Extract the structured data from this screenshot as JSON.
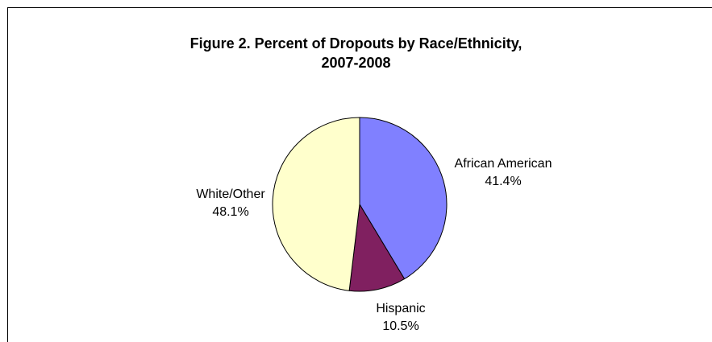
{
  "chart_data": {
    "type": "pie",
    "title_line1": "Figure 2.  Percent of Dropouts by Race/Ethnicity,",
    "title_line2": "2007-2008",
    "slices": [
      {
        "label": "African American",
        "value": 41.4,
        "value_text": "41.4%",
        "color": "#8080ff"
      },
      {
        "label": "Hispanic",
        "value": 10.5,
        "value_text": "10.5%",
        "color": "#802060"
      },
      {
        "label": "White/Other",
        "value": 48.1,
        "value_text": "48.1%",
        "color": "#ffffcc"
      }
    ],
    "start_angle": "12 o'clock",
    "direction": "clockwise",
    "slice_border_color": "#000000",
    "background_color": "#ffffff"
  }
}
